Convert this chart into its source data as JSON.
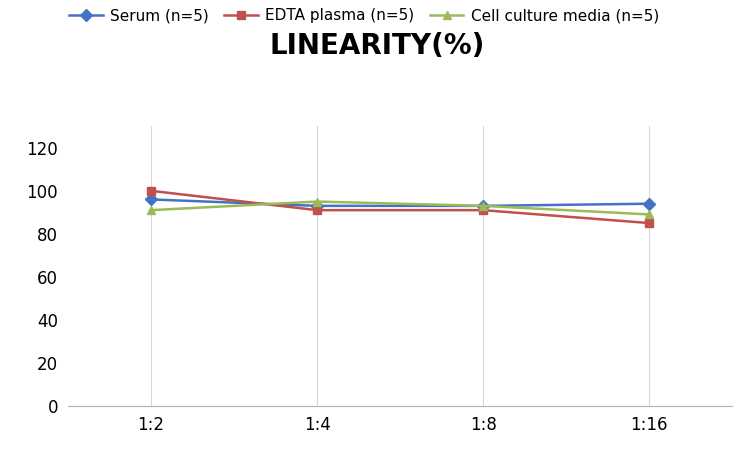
{
  "title": "LINEARITY(%)",
  "x_labels": [
    "1:2",
    "1:4",
    "1:8",
    "1:16"
  ],
  "x_positions": [
    0,
    1,
    2,
    3
  ],
  "series": [
    {
      "label": "Serum (n=5)",
      "values": [
        96,
        93,
        93,
        94
      ],
      "color": "#4472C4",
      "marker": "D",
      "marker_size": 6
    },
    {
      "label": "EDTA plasma (n=5)",
      "values": [
        100,
        91,
        91,
        85
      ],
      "color": "#C0504D",
      "marker": "s",
      "marker_size": 6
    },
    {
      "label": "Cell culture media (n=5)",
      "values": [
        91,
        95,
        93,
        89
      ],
      "color": "#9BBB59",
      "marker": "^",
      "marker_size": 6
    }
  ],
  "ylim": [
    0,
    130
  ],
  "yticks": [
    0,
    20,
    40,
    60,
    80,
    100,
    120
  ],
  "title_fontsize": 20,
  "legend_fontsize": 11,
  "tick_fontsize": 12,
  "background_color": "#ffffff",
  "grid_color": "#d8d8d8"
}
